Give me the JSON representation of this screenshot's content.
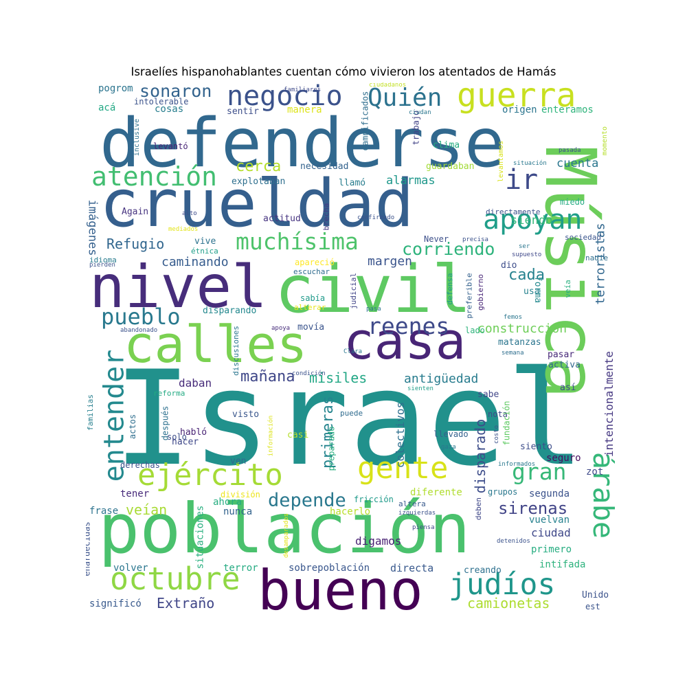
{
  "title": "Israelíes hispanohablantes cuentan cómo vivieron los atentados de Hamás",
  "palette": [
    "#440154",
    "#46337e",
    "#365c8d",
    "#277f8e",
    "#1fa187",
    "#4ac16d",
    "#a0da39",
    "#fde725"
  ],
  "words": [
    {
      "t": "Israel",
      "c": "#21918c"
    },
    {
      "t": "defenderse",
      "c": "#31688e"
    },
    {
      "t": "crueldad",
      "c": "#355f8d"
    },
    {
      "t": "población",
      "c": "#4ac16d"
    },
    {
      "t": "civil",
      "c": "#5ec962"
    },
    {
      "t": "nivel",
      "c": "#472d7b"
    },
    {
      "t": "Música",
      "c": "#6ccd5a"
    },
    {
      "t": "bueno",
      "c": "#440154"
    },
    {
      "t": "casa",
      "c": "#482576"
    },
    {
      "t": "calles",
      "c": "#7ad151"
    },
    {
      "t": "gente",
      "c": "#d8e219"
    },
    {
      "t": "ejército",
      "c": "#a5db36"
    },
    {
      "t": "guerra",
      "c": "#c8e020"
    },
    {
      "t": "árabe",
      "c": "#35b779"
    },
    {
      "t": "entender",
      "c": "#23898e"
    },
    {
      "t": "negocio",
      "c": "#3b528b"
    },
    {
      "t": "Quién",
      "c": "#2c728e"
    },
    {
      "t": "atención",
      "c": "#42be71"
    },
    {
      "t": "muchísima",
      "c": "#4ec36b"
    },
    {
      "t": "apoyan",
      "c": "#1f9e89"
    },
    {
      "t": "octubre",
      "c": "#8fd744"
    },
    {
      "t": "judíos",
      "c": "#1f968b"
    },
    {
      "t": "ir",
      "c": "#3e4a89"
    },
    {
      "t": "pueblo",
      "c": "#29798e"
    },
    {
      "t": "reenes",
      "c": "#3e4989"
    },
    {
      "t": "gran",
      "c": "#37b878"
    },
    {
      "t": "sonaron",
      "c": "#33638d"
    },
    {
      "t": "corriendo",
      "c": "#2eb37c"
    },
    {
      "t": "depende",
      "c": "#2a788e"
    },
    {
      "t": "sirenas",
      "c": "#414487"
    },
    {
      "t": "Refugio",
      "c": "#31668e"
    },
    {
      "t": "mañana",
      "c": "#3f4788"
    },
    {
      "t": "cerca",
      "c": "#b5de2b"
    },
    {
      "t": "cada",
      "c": "#26828e"
    },
    {
      "t": "construcción",
      "c": "#6ece58"
    },
    {
      "t": "misiles",
      "c": "#22a785"
    },
    {
      "t": "veían",
      "c": "#a8db34"
    },
    {
      "t": "camionetas",
      "c": "#addc30"
    },
    {
      "t": "Extraño",
      "c": "#404688"
    },
    {
      "t": "caminando",
      "c": "#365c8d"
    },
    {
      "t": "margen",
      "c": "#3a548c"
    },
    {
      "t": "antigüedad",
      "c": "#287c8e"
    },
    {
      "t": "primeras",
      "c": "#25848e"
    },
    {
      "t": "disparado",
      "c": "#3d4d8a"
    },
    {
      "t": "terroristas",
      "c": "#31678e"
    },
    {
      "t": "imágenes",
      "c": "#34608d"
    },
    {
      "t": "cuenta",
      "c": "#2a768e"
    },
    {
      "t": "siendo",
      "c": "#35b779"
    },
    {
      "t": "alarmas",
      "c": "#1f988b"
    },
    {
      "t": "daban",
      "c": "#472c7a"
    },
    {
      "t": "colectivos",
      "c": "#2e6f8e"
    },
    {
      "t": "intencionalmente",
      "c": "#453781"
    },
    {
      "t": "digamos",
      "c": "#482173"
    },
    {
      "t": "sobrepoblación",
      "c": "#39568c"
    },
    {
      "t": "directa",
      "c": "#38588c"
    },
    {
      "t": "ciudad",
      "c": "#3f4889"
    },
    {
      "t": "primero",
      "c": "#27ad81"
    },
    {
      "t": "intifada",
      "c": "#2db27d"
    },
    {
      "t": "creando",
      "c": "#2d708e"
    },
    {
      "t": "Unido",
      "c": "#3b528b"
    },
    {
      "t": "est",
      "c": "#3a538b"
    },
    {
      "t": "significó",
      "c": "#38598c"
    },
    {
      "t": "volver",
      "c": "#2a768e"
    },
    {
      "t": "terror",
      "c": "#25ab82"
    },
    {
      "t": "nunca",
      "c": "#33638d"
    },
    {
      "t": "ahora",
      "c": "#27ad81"
    },
    {
      "t": "tener",
      "c": "#472a7a"
    },
    {
      "t": "frase",
      "c": "#2c738e"
    },
    {
      "t": "situaciones",
      "c": "#29af7f"
    },
    {
      "t": "enardecidas",
      "c": "#3b528b"
    },
    {
      "t": "hacerlo",
      "c": "#b8de29"
    },
    {
      "t": "diferente",
      "c": "#b0dd2f"
    },
    {
      "t": "segunda",
      "c": "#3b528b"
    },
    {
      "t": "grupos",
      "c": "#2a788e"
    },
    {
      "t": "vuelvan",
      "c": "#26818e"
    },
    {
      "t": "seguro",
      "c": "#470d60"
    },
    {
      "t": "zot",
      "c": "#3e4989"
    },
    {
      "t": "pogrom",
      "c": "#2b748e"
    },
    {
      "t": "acá",
      "c": "#22a884"
    },
    {
      "t": "intolerable",
      "c": "#3b528b"
    },
    {
      "t": "cosas",
      "c": "#277e8e"
    },
    {
      "t": "sentir",
      "c": "#3d4e8a"
    },
    {
      "t": "manera",
      "c": "#dde318"
    },
    {
      "t": "origen",
      "c": "#2b758e"
    },
    {
      "t": "enteramos",
      "c": "#2fb47c"
    },
    {
      "t": "trabajo",
      "c": "#414287"
    },
    {
      "t": "damnificados",
      "c": "#2e6e8e"
    },
    {
      "t": "clima",
      "c": "#27ad81"
    },
    {
      "t": "guardaban",
      "c": "#a2da37"
    },
    {
      "t": "necesidad",
      "c": "#33628d"
    },
    {
      "t": "explotaban",
      "c": "#2e6f8e"
    },
    {
      "t": "llamó",
      "c": "#287d8e"
    },
    {
      "t": "levantó",
      "c": "#482475"
    },
    {
      "t": "Again",
      "c": "#46337f"
    },
    {
      "t": "actitud",
      "c": "#463480"
    },
    {
      "t": "brecha",
      "c": "#453882"
    },
    {
      "t": "directamente",
      "c": "#3b518b"
    },
    {
      "t": "miedo",
      "c": "#25ab82"
    },
    {
      "t": "Never",
      "c": "#3c4f8a"
    },
    {
      "t": "apareció",
      "c": "#fde725"
    },
    {
      "t": "sociedad",
      "c": "#3a548c"
    },
    {
      "t": "nadie",
      "c": "#2e6f8e"
    },
    {
      "t": "escuchar",
      "c": "#2f6c8e"
    },
    {
      "t": "sabía",
      "c": "#1f9a8a"
    },
    {
      "t": "alterar",
      "c": "#e5e419"
    },
    {
      "t": "disparando",
      "c": "#23888e"
    },
    {
      "t": "movía",
      "c": "#3a548c"
    },
    {
      "t": "lado",
      "c": "#2fb47c"
    },
    {
      "t": "matanzas",
      "c": "#2b758e"
    },
    {
      "t": "pasar",
      "c": "#472878"
    },
    {
      "t": "activa",
      "c": "#31688e"
    },
    {
      "t": "usa",
      "c": "#26828e"
    },
    {
      "t": "dio",
      "c": "#3d4d8a"
    },
    {
      "t": "vive",
      "c": "#2c728e"
    },
    {
      "t": "étnica",
      "c": "#1f9e89"
    },
    {
      "t": "idioma",
      "c": "#287c8e"
    },
    {
      "t": "forma",
      "c": "#23898e"
    },
    {
      "t": "sabe",
      "c": "#404688"
    },
    {
      "t": "así",
      "c": "#3e4c8a"
    },
    {
      "t": "nota",
      "c": "#3e4a89"
    },
    {
      "t": "llevado",
      "c": "#34618d"
    },
    {
      "t": "siento",
      "c": "#3d4d8a"
    },
    {
      "t": "visto",
      "c": "#39568c"
    },
    {
      "t": "casi",
      "c": "#b5de2b"
    },
    {
      "t": "puede",
      "c": "#2f6b8e"
    },
    {
      "t": "solo",
      "c": "#3d4e8a"
    },
    {
      "t": "después",
      "c": "#2d708e"
    },
    {
      "t": "actos",
      "c": "#2e6e8e"
    },
    {
      "t": "habló",
      "c": "#482374"
    },
    {
      "t": "hacer",
      "c": "#3f4889"
    },
    {
      "t": "reforma",
      "c": "#24aa83"
    },
    {
      "t": "familias",
      "c": "#277f8e"
    },
    {
      "t": "derechas",
      "c": "#3b528b"
    },
    {
      "t": "ven",
      "c": "#31688e"
    },
    {
      "t": "preparado",
      "c": "#2ab07f"
    },
    {
      "t": "división",
      "c": "#ece51b"
    },
    {
      "t": "fricción",
      "c": "#1f9a8a"
    },
    {
      "t": "altera",
      "c": "#38598c"
    },
    {
      "t": "deben",
      "c": "#3f4788"
    },
    {
      "t": "fundación",
      "c": "#5ec962"
    },
    {
      "t": "informados",
      "c": "#2a788e"
    },
    {
      "t": "discusiones",
      "c": "#2a768e"
    },
    {
      "t": "judicial",
      "c": "#404387"
    },
    {
      "t": "preferible",
      "c": "#34618d"
    },
    {
      "t": "defensa",
      "c": "#1f9a8a"
    },
    {
      "t": "gobierno",
      "c": "#482677"
    },
    {
      "t": "veía",
      "c": "#29af7f"
    },
    {
      "t": "inclusive",
      "c": "#2c728e"
    },
    {
      "t": "momento",
      "c": "#b5de2b"
    },
    {
      "t": "levantamos",
      "c": "#d8e219"
    },
    {
      "t": "pasada",
      "c": "#3b528b"
    },
    {
      "t": "situación",
      "c": "#2a788e"
    },
    {
      "t": "familiares",
      "c": "#3e4989"
    },
    {
      "t": "ciudadanos",
      "c": "#c2df23"
    },
    {
      "t": "ciudan",
      "c": "#2a768e"
    },
    {
      "t": "confirmado",
      "c": "#3b528b"
    },
    {
      "t": "alto",
      "c": "#3e4c8a"
    },
    {
      "t": "mediados",
      "c": "#e2e418"
    },
    {
      "t": "precisa",
      "c": "#3b528b"
    },
    {
      "t": "ser",
      "c": "#2a768e"
    },
    {
      "t": "supuesto",
      "c": "#3f4889"
    },
    {
      "t": "pierden",
      "c": "#3b528b"
    },
    {
      "t": "femos",
      "c": "#2a768e"
    },
    {
      "t": "abandonado",
      "c": "#3b528b"
    },
    {
      "t": "apoya",
      "c": "#472d7b"
    },
    {
      "t": "pasa",
      "c": "#2c728e"
    },
    {
      "t": "Clara",
      "c": "#2a788e"
    },
    {
      "t": "semana",
      "c": "#2e6e8e"
    },
    {
      "t": "condición",
      "c": "#3b528b"
    },
    {
      "t": "sienten",
      "c": "#1f9e89"
    },
    {
      "t": "información",
      "c": "#dde318"
    },
    {
      "t": "costo",
      "c": "#3b528b"
    },
    {
      "t": "gaza",
      "c": "#2a788e"
    },
    {
      "t": "izquierdas",
      "c": "#3b528b"
    },
    {
      "t": "piensa",
      "c": "#3f4889"
    },
    {
      "t": "desamparados",
      "c": "#e2e418"
    },
    {
      "t": "detenidos",
      "c": "#3b528b"
    }
  ]
}
